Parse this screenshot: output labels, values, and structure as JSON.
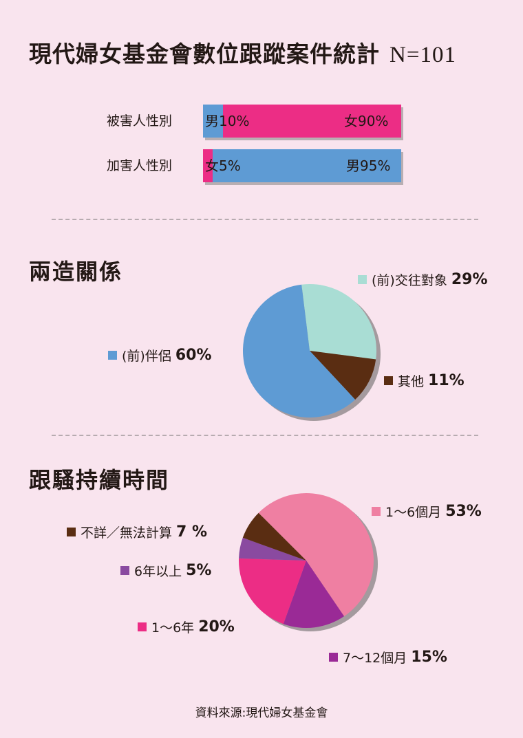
{
  "title": "現代婦女基金會數位跟蹤案件統計",
  "title_n": "N=101",
  "gender_bars": [
    {
      "label": "被害人性別",
      "segments": [
        {
          "text": "男10%",
          "value": 10,
          "color": "#5e9bd4"
        },
        {
          "text": "女90%",
          "value": 90,
          "color": "#ec2d85"
        }
      ]
    },
    {
      "label": "加害人性別",
      "segments": [
        {
          "text": "女5%",
          "value": 5,
          "color": "#ec2d85"
        },
        {
          "text": "男95%",
          "value": 95,
          "color": "#5e9bd4"
        }
      ]
    }
  ],
  "relation": {
    "title": "兩造關係",
    "legend": [
      {
        "label": "(前)交往對象",
        "pct": "29%"
      },
      {
        "label": "其他",
        "pct": "11%"
      },
      {
        "label": "(前)伴侶",
        "pct": "60%"
      }
    ]
  },
  "duration": {
    "title": "跟騷持續時間",
    "legend": [
      {
        "label": "1～6個月",
        "pct": "53%"
      },
      {
        "label": "不詳／無法計算",
        "pct": "7 %"
      },
      {
        "label": "6年以上",
        "pct": "5%"
      },
      {
        "label": "1～6年",
        "pct": "20%"
      },
      {
        "label": "7～12個月",
        "pct": "15%"
      }
    ]
  },
  "source": "資料來源:現代婦女基金會",
  "chart_data": [
    {
      "type": "bar",
      "stacked": true,
      "orientation": "horizontal",
      "categories": [
        "被害人性別",
        "加害人性別"
      ],
      "series": [
        {
          "name": "男",
          "values": [
            10,
            95
          ],
          "color": "#5e9bd4"
        },
        {
          "name": "女",
          "values": [
            90,
            5
          ],
          "color": "#ec2d85"
        }
      ]
    },
    {
      "type": "pie",
      "title": "兩造關係",
      "labels": [
        "(前)交往對象",
        "其他",
        "(前)伴侶"
      ],
      "values": [
        29,
        11,
        60
      ],
      "colors": [
        "#a9ddd4",
        "#5a2d12",
        "#5e9bd4"
      ]
    },
    {
      "type": "pie",
      "title": "跟騷持續時間",
      "labels": [
        "1～6個月",
        "7～12個月",
        "1～6年",
        "6年以上",
        "不詳／無法計算"
      ],
      "values": [
        53,
        15,
        20,
        5,
        7
      ],
      "colors": [
        "#ef7fa2",
        "#9a2a96",
        "#ec2d85",
        "#8a4aa0",
        "#5a2d12"
      ]
    }
  ]
}
